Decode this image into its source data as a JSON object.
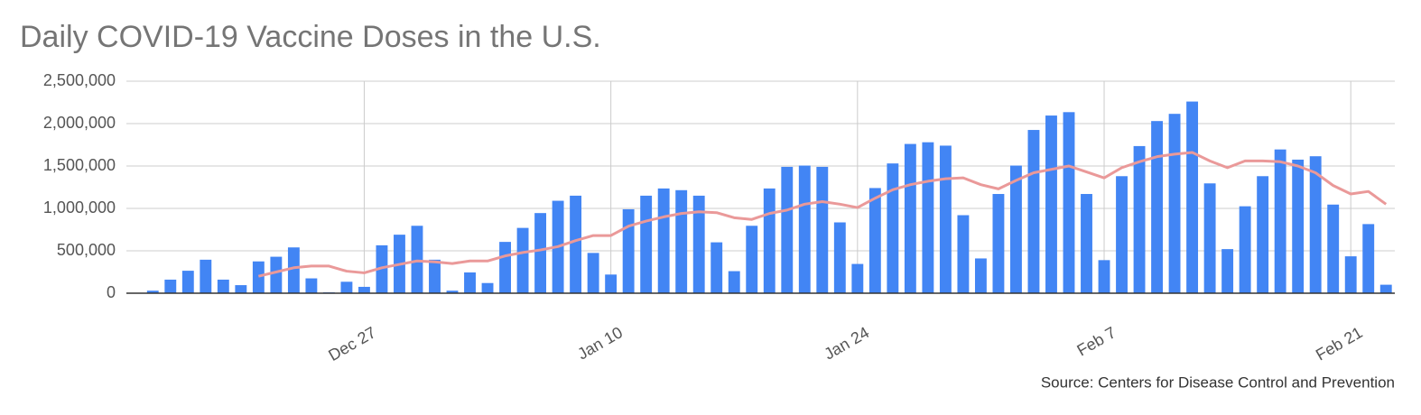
{
  "chart_data": {
    "type": "combo",
    "title": "Daily COVID-19 Vaccine Doses in the U.S.",
    "source": "Source: Centers for Disease Control and Prevention",
    "categories": [
      null,
      null,
      null,
      null,
      null,
      null,
      null,
      null,
      null,
      null,
      null,
      null,
      null,
      "Dec 27",
      null,
      null,
      null,
      null,
      null,
      null,
      null,
      null,
      null,
      null,
      null,
      null,
      null,
      "Jan 10",
      null,
      null,
      null,
      null,
      null,
      null,
      null,
      null,
      null,
      null,
      null,
      null,
      null,
      "Jan 24",
      null,
      null,
      null,
      null,
      null,
      null,
      null,
      null,
      null,
      null,
      null,
      null,
      null,
      "Feb 7",
      null,
      null,
      null,
      null,
      null,
      null,
      null,
      null,
      null,
      null,
      null,
      null,
      null,
      "Feb 21",
      null,
      null
    ],
    "series": [
      {
        "type": "bar",
        "color": "#4285f4",
        "values": [
          null,
          30000,
          160000,
          265000,
          395000,
          160000,
          95000,
          375000,
          430000,
          540000,
          175000,
          10000,
          135000,
          75000,
          565000,
          690000,
          795000,
          395000,
          30000,
          245000,
          120000,
          605000,
          770000,
          945000,
          1090000,
          1150000,
          475000,
          220000,
          990000,
          1150000,
          1235000,
          1215000,
          1150000,
          600000,
          260000,
          795000,
          1235000,
          1490000,
          1505000,
          1490000,
          835000,
          345000,
          1240000,
          1530000,
          1760000,
          1780000,
          1740000,
          920000,
          410000,
          1170000,
          1505000,
          1925000,
          2095000,
          2135000,
          1170000,
          390000,
          1380000,
          1735000,
          2030000,
          2115000,
          2260000,
          1295000,
          520000,
          1025000,
          1380000,
          1695000,
          1575000,
          1615000,
          1045000,
          435000,
          815000,
          100000
        ]
      },
      {
        "type": "line",
        "color": "#ea9999",
        "values": [
          null,
          null,
          null,
          null,
          null,
          null,
          null,
          200000,
          250000,
          300000,
          320000,
          320000,
          260000,
          240000,
          300000,
          340000,
          380000,
          370000,
          350000,
          380000,
          380000,
          440000,
          480000,
          510000,
          550000,
          620000,
          680000,
          680000,
          790000,
          850000,
          900000,
          940000,
          960000,
          950000,
          890000,
          870000,
          940000,
          980000,
          1050000,
          1080000,
          1050000,
          1010000,
          1120000,
          1220000,
          1280000,
          1320000,
          1350000,
          1360000,
          1280000,
          1230000,
          1330000,
          1420000,
          1460000,
          1500000,
          1430000,
          1360000,
          1480000,
          1550000,
          1610000,
          1640000,
          1660000,
          1560000,
          1480000,
          1560000,
          1560000,
          1550000,
          1500000,
          1420000,
          1270000,
          1170000,
          1200000,
          1050000
        ]
      }
    ],
    "ylim": [
      0,
      2500000
    ],
    "yticks": [
      0,
      {
        "value": 500000,
        "label": "500,000"
      },
      {
        "value": 1000000,
        "label": "1,000,000"
      },
      {
        "value": 1500000,
        "label": "1,500,000"
      },
      {
        "value": 2000000,
        "label": "2,000,000"
      },
      {
        "value": 2500000,
        "label": "2,500,000"
      }
    ],
    "grid": true
  }
}
